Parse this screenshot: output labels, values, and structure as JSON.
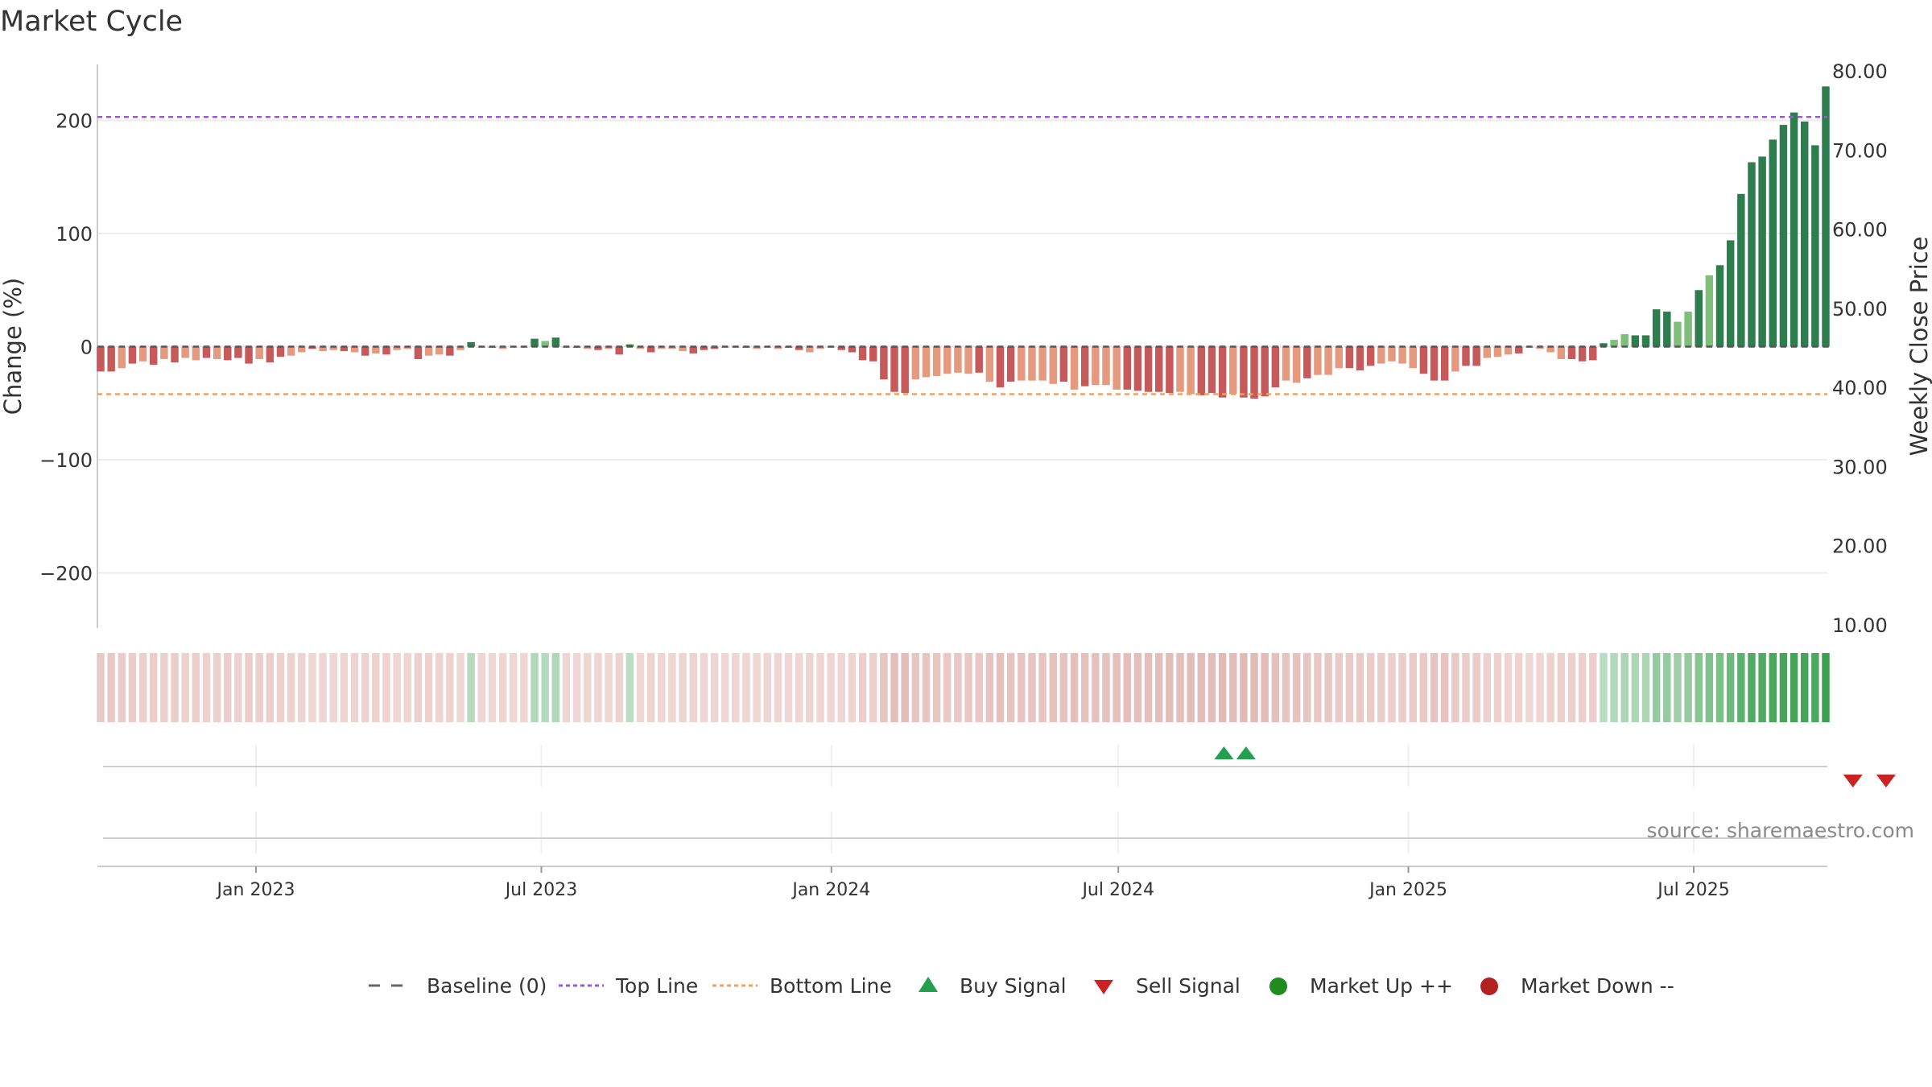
{
  "chart_data": {
    "type": "bar",
    "title": "Market Cycle",
    "ylabel_left": "Change (%)",
    "ylabel_right": "Weekly Close Price",
    "left_ylim": [
      -250,
      250
    ],
    "left_ticks": [
      {
        "v": 200,
        "label": "200"
      },
      {
        "v": 100,
        "label": "100"
      },
      {
        "v": 0,
        "label": "0"
      },
      {
        "v": -100,
        "label": "−100"
      },
      {
        "v": -200,
        "label": "−200"
      }
    ],
    "right_ylim": [
      10,
      80
    ],
    "right_ticks": [
      "80.00",
      "70.00",
      "60.00",
      "50.00",
      "40.00",
      "30.00",
      "20.00",
      "10.00"
    ],
    "top_line": 203,
    "bottom_line": -42,
    "date_ticks": [
      "Jan 2023",
      "Jul 2023",
      "Jan 2024",
      "Jul 2024",
      "Jan 2025",
      "Jul 2025"
    ],
    "values": [
      -22,
      -22,
      -19,
      -15,
      -13,
      -16,
      -11,
      -14,
      -10,
      -12,
      -10,
      -11,
      -12,
      -10,
      -15,
      -11,
      -14,
      -9,
      -8,
      -5,
      -2,
      -4,
      -3,
      -4,
      -5,
      -8,
      -6,
      -7,
      -3,
      -2,
      -11,
      -8,
      -7,
      -8,
      -3,
      4,
      -1,
      -1,
      -2,
      -1,
      -1,
      7,
      5,
      8,
      -1,
      -1,
      -2,
      -3,
      -2,
      -7,
      2,
      -2,
      -5,
      -2,
      -2,
      -4,
      -6,
      -3,
      -2,
      -1,
      -1,
      -1,
      -2,
      -1,
      -2,
      -1,
      -3,
      -5,
      -2,
      -1,
      -3,
      -5,
      -12,
      -13,
      -29,
      -40,
      -41,
      -29,
      -27,
      -26,
      -24,
      -23,
      -24,
      -23,
      -31,
      -36,
      -31,
      -30,
      -30,
      -30,
      -33,
      -31,
      -38,
      -35,
      -34,
      -34,
      -38,
      -38,
      -39,
      -40,
      -40,
      -41,
      -40,
      -42,
      -43,
      -41,
      -45,
      -42,
      -45,
      -46,
      -44,
      -36,
      -30,
      -32,
      -28,
      -25,
      -25,
      -19,
      -19,
      -21,
      -17,
      -15,
      -13,
      -15,
      -19,
      -24,
      -30,
      -30,
      -22,
      -17,
      -17,
      -10,
      -9,
      -7,
      -6,
      -1,
      -2,
      -5,
      -11,
      -11,
      -13,
      -12,
      3,
      6,
      11,
      10,
      10,
      33,
      31,
      22,
      31,
      50,
      63,
      72,
      94,
      135,
      163,
      168,
      183,
      196,
      207,
      199,
      178,
      230
    ],
    "bar_tones": [
      "d",
      "d",
      "l",
      "d",
      "l",
      "d",
      "l",
      "d",
      "l",
      "l",
      "d",
      "l",
      "d",
      "d",
      "d",
      "l",
      "d",
      "d",
      "l",
      "l",
      "d",
      "l",
      "l",
      "d",
      "l",
      "d",
      "l",
      "d",
      "l",
      "l",
      "d",
      "l",
      "l",
      "d",
      "l",
      "d",
      "l",
      "d",
      "l",
      "l",
      "l",
      "d",
      "l",
      "d",
      "l",
      "d",
      "l",
      "d",
      "l",
      "d",
      "d",
      "l",
      "d",
      "l",
      "l",
      "l",
      "d",
      "d",
      "d",
      "l",
      "l",
      "d",
      "l",
      "l",
      "l",
      "d",
      "d",
      "l",
      "l",
      "l",
      "d",
      "d",
      "d",
      "d",
      "d",
      "d",
      "d",
      "l",
      "l",
      "l",
      "l",
      "l",
      "l",
      "d",
      "l",
      "d",
      "d",
      "l",
      "l",
      "l",
      "l",
      "d",
      "l",
      "d",
      "l",
      "l",
      "l",
      "d",
      "d",
      "d",
      "d",
      "d",
      "l",
      "l",
      "d",
      "d",
      "d",
      "l",
      "d",
      "d",
      "d",
      "d",
      "l",
      "l",
      "d",
      "l",
      "l",
      "l",
      "d",
      "d",
      "d",
      "l",
      "l",
      "l",
      "l",
      "d",
      "d",
      "d",
      "l",
      "d",
      "d",
      "l",
      "l",
      "l",
      "d",
      "l",
      "l",
      "l",
      "l",
      "d",
      "d",
      "d",
      "d",
      "l",
      "l",
      "d",
      "d",
      "d",
      "d",
      "l",
      "l",
      "d",
      "l",
      "d",
      "d",
      "d",
      "d",
      "d",
      "d",
      "d",
      "d",
      "d",
      "d",
      "d",
      "l",
      "l",
      "d"
    ],
    "signals": {
      "buy": [
        [
          "2024-09-06",
          "2024-09-20"
        ]
      ],
      "sell": [
        [
          "2025-10-10",
          "2025-10-31"
        ]
      ]
    },
    "legend": {
      "baseline": "Baseline (0)",
      "top_line": "Top Line",
      "bottom_line": "Bottom Line",
      "buy": "Buy Signal",
      "sell": "Sell Signal",
      "market_up": "Market Up ++",
      "market_down": "Market Down --"
    },
    "source": "source: sharemaestro.com",
    "colors": {
      "green_dark": "#2e7d4f",
      "green_light": "#7fbf7b",
      "red_dark": "#c65a5a",
      "red_light": "#e59a80",
      "top_line": "#9b59d0",
      "bottom_line": "#f0a060",
      "buy": "#22a050",
      "sell": "#cc2222",
      "market_up": "#1e8c1e",
      "market_down": "#b22222"
    }
  }
}
